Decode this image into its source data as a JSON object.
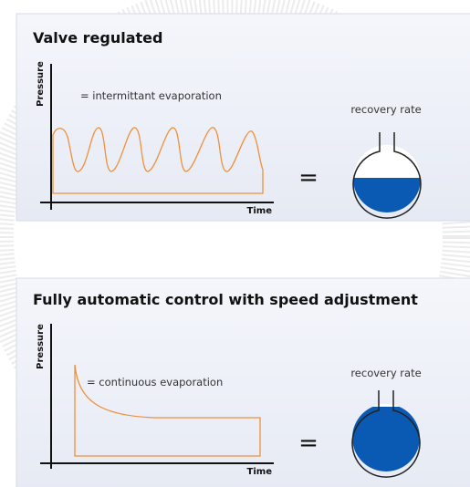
{
  "panels": [
    {
      "title": "Valve regulated",
      "y_label": "Pressure",
      "x_label": "Time",
      "annotation": "= intermittant evaporation",
      "equals": "=",
      "result_label": "recovery rate"
    },
    {
      "title": "Fully automatic control with speed adjustment",
      "y_label": "Pressure",
      "x_label": "Time",
      "annotation": "= continuous evaporation",
      "equals": "=",
      "result_label": "recovery rate"
    }
  ]
}
